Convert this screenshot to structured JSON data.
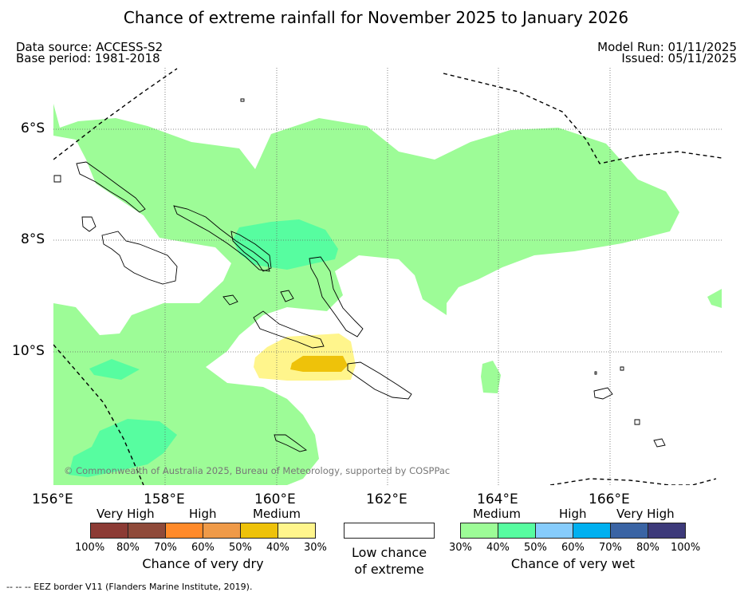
{
  "title": "Chance of extreme rainfall for November 2025 to January 2026",
  "header": {
    "data_source": "Data source: ACCESS-S2",
    "base_period": "Base period: 1981-2018",
    "model_run": "Model Run: 01/11/2025",
    "issued": "Issued: 05/11/2025"
  },
  "map": {
    "lat_labels": [
      "6°S",
      "8°S",
      "10°S"
    ],
    "lon_labels": [
      "156°E",
      "158°E",
      "160°E",
      "162°E",
      "164°E",
      "166°E"
    ],
    "credit": "© Commonwealth of Australia 2025, Bureau of Meteorology, supported by COSPPac",
    "eez_line_style": "dashed",
    "grid": "dotted"
  },
  "legend_dry": {
    "labels": [
      "Very High",
      "High",
      "Medium"
    ],
    "ticks": [
      "100%",
      "80%",
      "70%",
      "60%",
      "50%",
      "40%",
      "30%"
    ],
    "colors": [
      "#8c3b35",
      "#8f4a3a",
      "#ff8a2a",
      "#ef9a48",
      "#eec20a",
      "#fff58c"
    ],
    "caption": "Chance of very dry"
  },
  "legend_none": {
    "color": "#ffffff",
    "caption_line1": "Low chance",
    "caption_line2": "of extreme"
  },
  "legend_wet": {
    "labels": [
      "Medium",
      "High",
      "Very High"
    ],
    "ticks": [
      "30%",
      "40%",
      "50%",
      "60%",
      "70%",
      "80%",
      "100%"
    ],
    "colors": [
      "#9dfc97",
      "#57fda0",
      "#86ccfc",
      "#00b0f0",
      "#3a64a4",
      "#3d3a7a"
    ],
    "caption": "Chance of very wet"
  },
  "footnote": "--  --  -- EEZ border V11 (Flanders Marine Institute, 2019)."
}
